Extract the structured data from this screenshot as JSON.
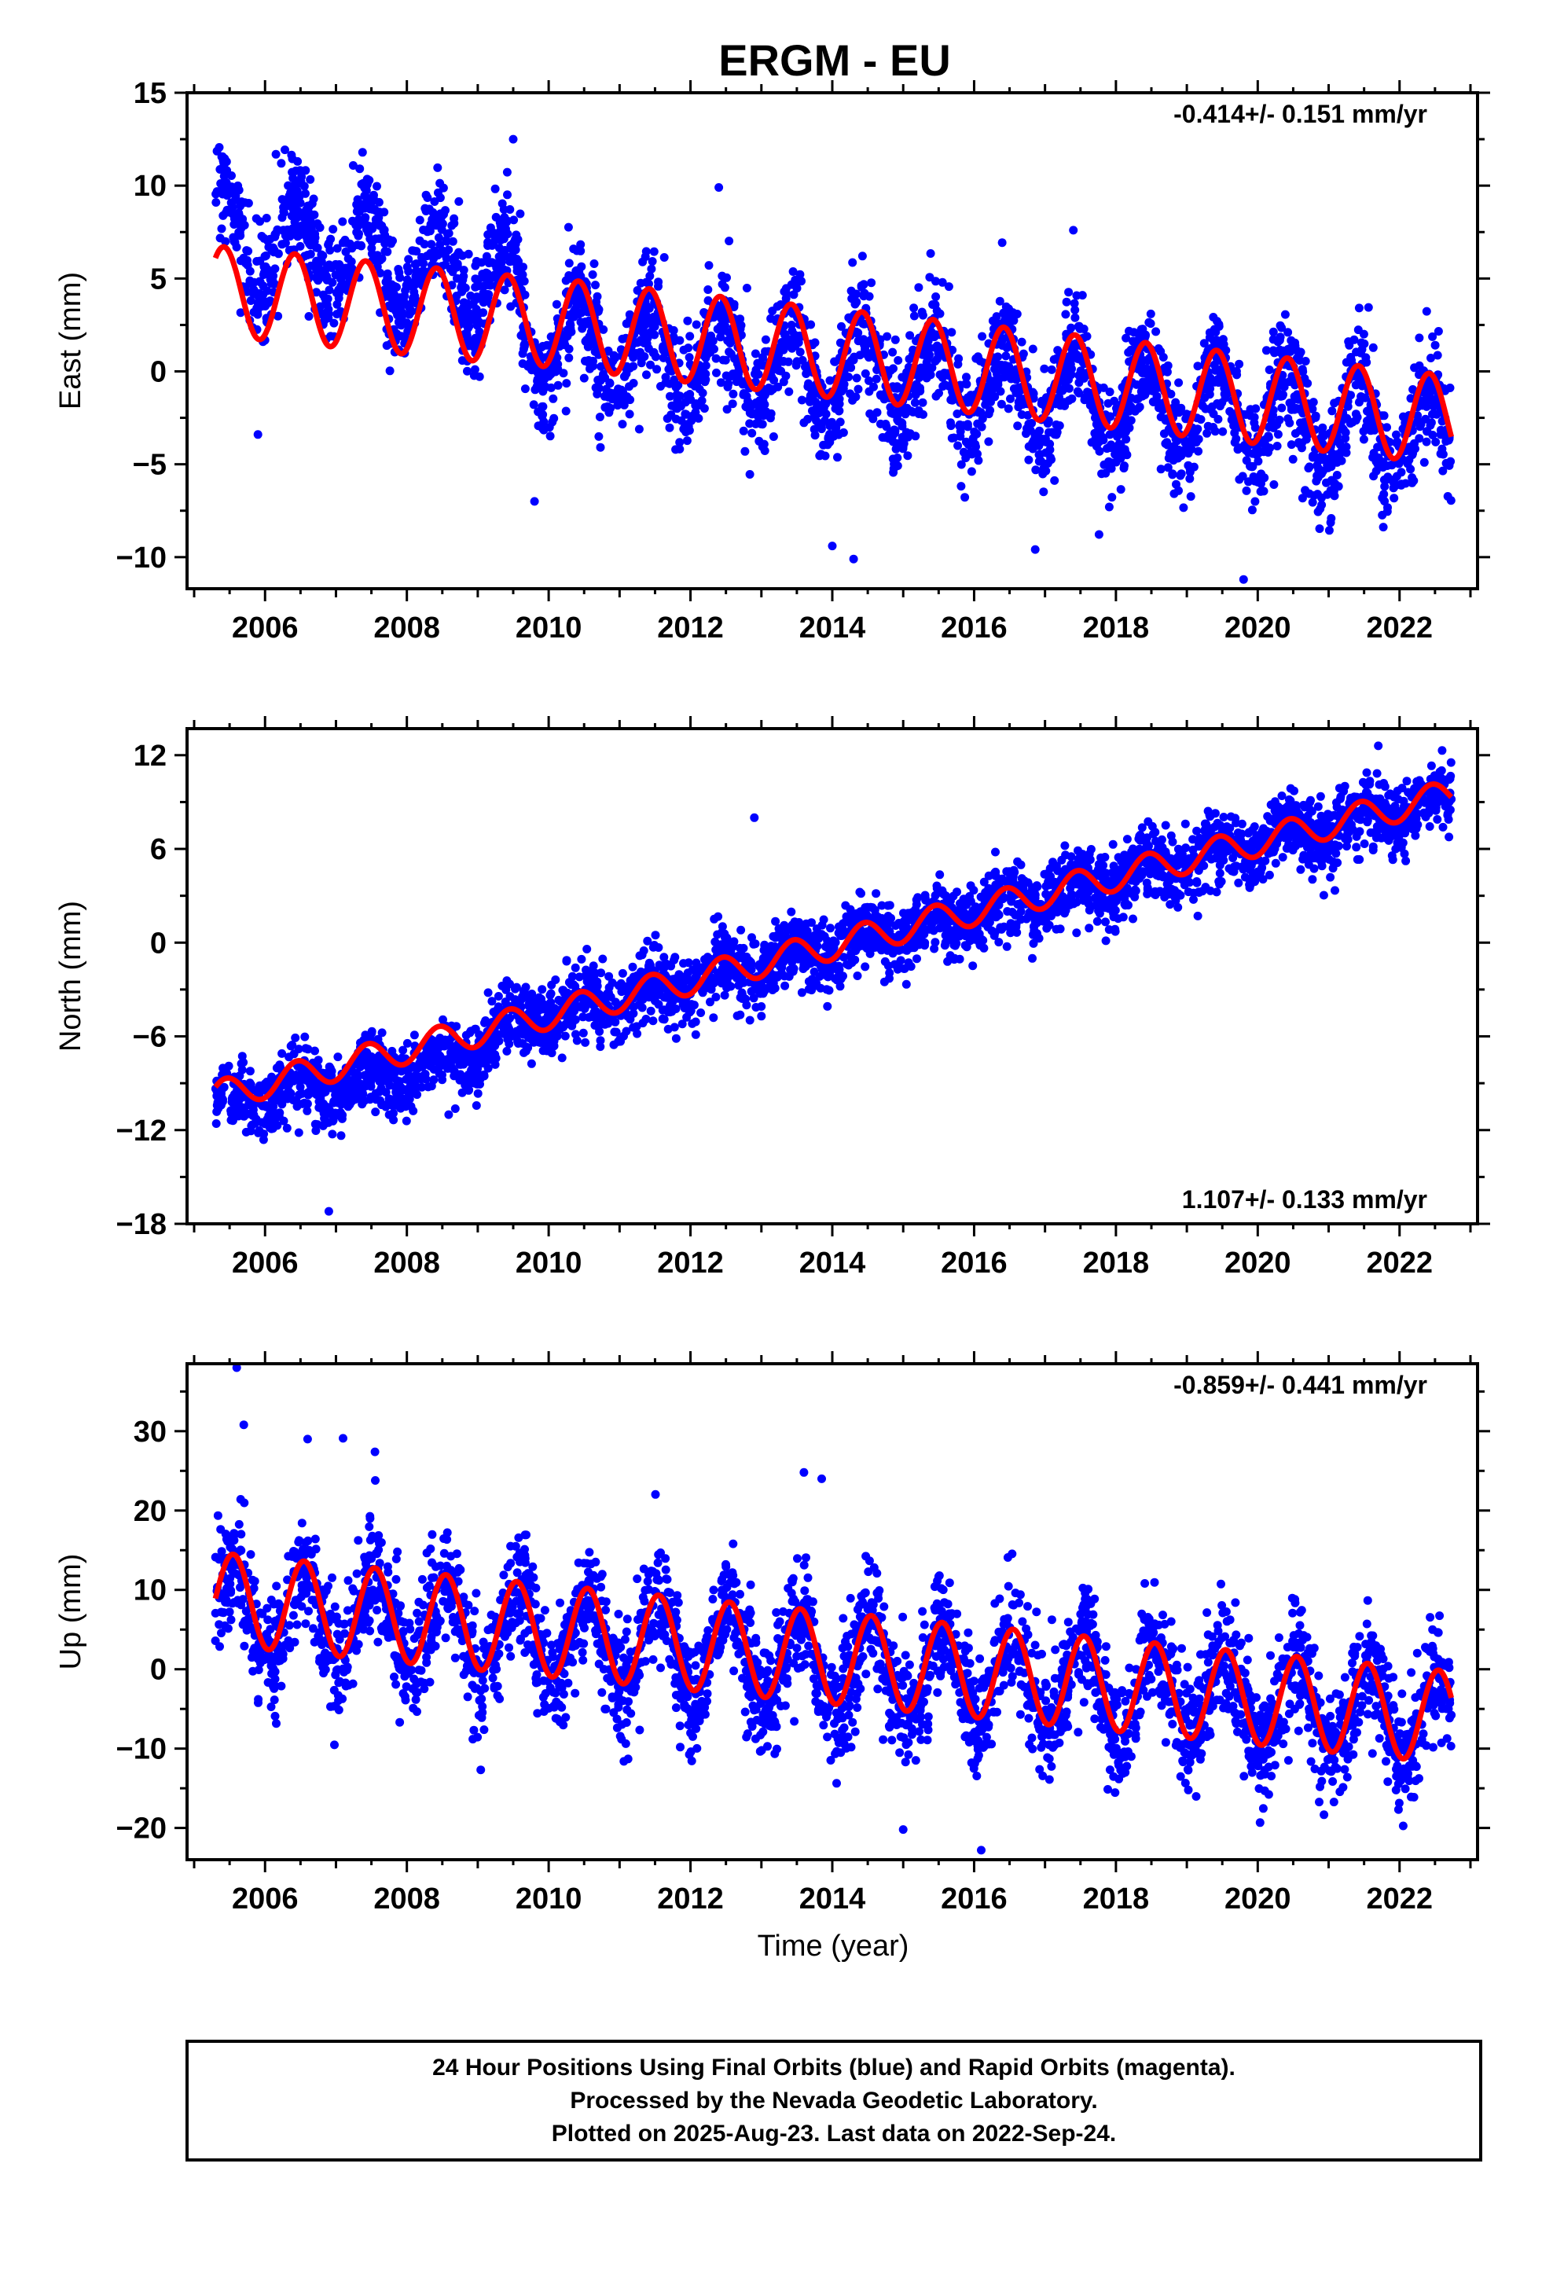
{
  "title": "ERGM - EU",
  "x_label": "Time (year)",
  "x_ticks": [
    "2006",
    "2008",
    "2010",
    "2012",
    "2014",
    "2016",
    "2018",
    "2020",
    "2022"
  ],
  "colors": {
    "points": "#0000ff",
    "fit": "#ff0000",
    "frame": "#000000"
  },
  "footer": {
    "line1": "24 Hour Positions Using Final Orbits (blue) and Rapid Orbits (magenta).",
    "line2": "Processed by the Nevada Geodetic Laboratory.",
    "line3": "Plotted on 2025-Aug-23. Last data on 2022-Sep-24."
  },
  "chart_data": [
    {
      "type": "scatter",
      "component": "East",
      "ylabel": "East (mm)",
      "rate": "-0.414+/- 0.151 mm/yr",
      "rate_position": "top-right",
      "xlim": [
        2004.9,
        2023.1
      ],
      "ylim": [
        -11.7,
        15
      ],
      "y_ticks": [
        "15",
        "10",
        "5",
        "0",
        "−5",
        "−10"
      ],
      "y_tick_values": [
        15,
        10,
        5,
        0,
        -5,
        -10
      ],
      "series": [
        {
          "name": "Final Orbits (blue)",
          "kind": "points",
          "x_start": 2005.3,
          "x_end": 2022.73,
          "trend": [
            [
              2005.3,
              7.3
            ],
            [
              2009.5,
              4.8
            ],
            [
              2009.7,
              1.8
            ],
            [
              2022.73,
              -3.4
            ]
          ],
          "annual_amplitude": 2.4,
          "peak_phase": 0.42,
          "scatter_sd": 1.5,
          "notable_points": [
            [
              2005.9,
              -3.4
            ],
            [
              2009.8,
              -7.0
            ],
            [
              2014.0,
              -9.4
            ],
            [
              2014.3,
              -10.1
            ],
            [
              2019.8,
              -11.2
            ],
            [
              2017.4,
              7.6
            ],
            [
              2012.4,
              9.9
            ],
            [
              2009.5,
              12.5
            ]
          ]
        },
        {
          "name": "Model fit (red)",
          "kind": "line",
          "segments": [
            {
              "from": 2005.3,
              "to": 2009.6,
              "offset": [
                2005.3,
                4.35
              ],
              "slope": -0.38,
              "amplitude": 2.4,
              "peak_phase": 0.42
            },
            {
              "from": 2009.6,
              "to": 2022.73,
              "offset": [
                2009.6,
                2.8
              ],
              "slope": -0.414,
              "amplitude": 2.4,
              "peak_phase": 0.42
            }
          ]
        }
      ]
    },
    {
      "type": "scatter",
      "component": "North",
      "ylabel": "North (mm)",
      "rate": "1.107+/- 0.133 mm/yr",
      "rate_position": "bottom-right",
      "xlim": [
        2004.9,
        2023.1
      ],
      "ylim": [
        -18,
        13.7
      ],
      "y_ticks": [
        "12",
        "6",
        "0",
        "−6",
        "−12",
        "−18"
      ],
      "y_tick_values": [
        12,
        6,
        0,
        -6,
        -12,
        -18
      ],
      "series": [
        {
          "name": "Final Orbits (blue)",
          "kind": "points",
          "x_start": 2005.3,
          "x_end": 2022.73,
          "trend": [
            [
              2005.3,
              -10.4
            ],
            [
              2008.5,
              -8.0
            ],
            [
              2009.5,
              -5.2
            ],
            [
              2022.73,
              9.2
            ]
          ],
          "annual_amplitude": 0.8,
          "peak_phase": 0.45,
          "scatter_sd": 1.1,
          "notable_points": [
            [
              2006.9,
              -17.2
            ],
            [
              2012.9,
              8.0
            ],
            [
              2016.3,
              5.8
            ],
            [
              2021.7,
              12.6
            ],
            [
              2022.6,
              12.3
            ]
          ]
        },
        {
          "name": "Model fit (red)",
          "kind": "line",
          "segments": [
            {
              "from": 2005.3,
              "to": 2022.73,
              "offset": [
                2005.3,
                -9.8
              ],
              "slope": 1.107,
              "amplitude": 0.95,
              "peak_phase": 0.45
            }
          ]
        }
      ]
    },
    {
      "type": "scatter",
      "component": "Up",
      "ylabel": "Up (mm)",
      "rate": "-0.859+/- 0.441 mm/yr",
      "rate_position": "top-right",
      "xlim": [
        2004.9,
        2023.1
      ],
      "ylim": [
        -24,
        38.5
      ],
      "y_ticks": [
        "30",
        "20",
        "10",
        "0",
        "−10",
        "−20"
      ],
      "y_tick_values": [
        30,
        20,
        10,
        0,
        -10,
        -20
      ],
      "series": [
        {
          "name": "Final Orbits (blue)",
          "kind": "points",
          "x_start": 2005.3,
          "x_end": 2022.73,
          "trend": [
            [
              2005.3,
              8.0
            ],
            [
              2022.73,
              -6.5
            ]
          ],
          "annual_amplitude": 5.8,
          "peak_phase": 0.55,
          "scatter_sd": 3.6,
          "notable_points": [
            [
              2005.6,
              38.0
            ],
            [
              2005.7,
              30.8
            ],
            [
              2006.6,
              29.0
            ],
            [
              2007.1,
              29.1
            ],
            [
              2007.55,
              27.4
            ],
            [
              2013.6,
              24.8
            ],
            [
              2013.85,
              24.0
            ],
            [
              2016.1,
              -22.8
            ],
            [
              2015.0,
              -20.2
            ]
          ]
        },
        {
          "name": "Model fit (red)",
          "kind": "line",
          "segments": [
            {
              "from": 2005.3,
              "to": 2022.73,
              "offset": [
                2005.3,
                8.9
              ],
              "slope": -0.859,
              "amplitude": 5.8,
              "peak_phase": 0.55
            }
          ]
        }
      ]
    }
  ]
}
